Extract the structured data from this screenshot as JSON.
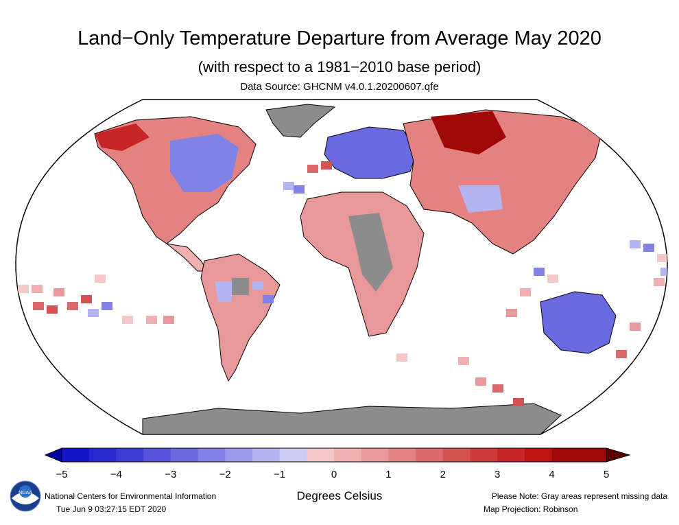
{
  "header": {
    "title": "Land−Only Temperature Departure from Average May 2020",
    "subtitle": "(with respect to a 1981−2010 base period)",
    "source": "Data Source: GHCNM v4.0.1.20200607.qfe"
  },
  "legend": {
    "ticks": [
      "−5",
      "−4",
      "−3",
      "−2",
      "−1",
      "0",
      "1",
      "2",
      "3",
      "4",
      "5"
    ],
    "units": "Degrees Celsius",
    "colors": [
      "#1414c8",
      "#2828d0",
      "#3c3cd4",
      "#5252dc",
      "#6a6ae0",
      "#8282e6",
      "#9a9aec",
      "#b4b4f0",
      "#ccccf6",
      "#f4c8c8",
      "#f0b0b0",
      "#e89898",
      "#e48282",
      "#dc6a6a",
      "#d45252",
      "#cc3a3a",
      "#c82626",
      "#be1414",
      "#a00808"
    ],
    "colors_map_note": "missing-data fill",
    "missing_color": "#8c8c8c"
  },
  "footer": {
    "organization": "National Centers for Environmental Information",
    "timestamp": "Tue Jun  9 03:27:15 EDT 2020",
    "note": "Please Note: Gray areas represent missing data",
    "projection": "Map Projection: Robinson"
  },
  "logo": {
    "text": "NOAA",
    "icon": "noaa-logo"
  },
  "map_regions": [
    {
      "name": "north-america",
      "anomaly": -1
    },
    {
      "name": "alaska",
      "anomaly": 3
    },
    {
      "name": "western-europe",
      "anomaly": -2
    },
    {
      "name": "siberia",
      "anomaly": 5
    },
    {
      "name": "australia",
      "anomaly": -2
    },
    {
      "name": "antarctica",
      "anomaly": null
    }
  ]
}
